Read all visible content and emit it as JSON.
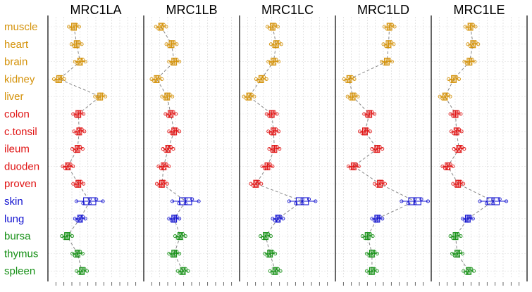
{
  "chart_data": {
    "type": "boxplot-profile",
    "panels": [
      "MRC1LA",
      "MRC1LB",
      "MRC1LC",
      "MRC1LD",
      "MRC1LE"
    ],
    "tissues": [
      "muscle",
      "heart",
      "brain",
      "kidney",
      "liver",
      "colon",
      "c.tonsil",
      "ileum",
      "duoden",
      "proven",
      "skin",
      "lung",
      "bursa",
      "thymus",
      "spleen"
    ],
    "tissue_groups": [
      0,
      0,
      0,
      0,
      0,
      1,
      1,
      1,
      1,
      1,
      2,
      2,
      3,
      3,
      3
    ],
    "group_colors": [
      "#d4920a",
      "#e01414",
      "#1414d0",
      "#169016"
    ],
    "grid": true,
    "connect_medians": true,
    "medians": [
      [
        2.5,
        2.8,
        3.2,
        0.8,
        5.5,
        3.0,
        3.1,
        2.9,
        1.8,
        3.0,
        4.3,
        3.2,
        1.7,
        2.9,
        3.4
      ],
      [
        1.5,
        2.7,
        3.0,
        1.0,
        2.2,
        2.6,
        3.0,
        2.3,
        1.8,
        1.6,
        4.3,
        3.0,
        3.7,
        3.0,
        4.0
      ],
      [
        3.3,
        3.7,
        3.4,
        2.0,
        0.6,
        3.2,
        3.4,
        3.5,
        2.7,
        1.4,
        6.7,
        3.9,
        2.5,
        3.0,
        3.6
      ],
      [
        5.7,
        5.6,
        5.4,
        1.1,
        1.5,
        3.4,
        2.9,
        4.3,
        1.6,
        4.6,
        8.6,
        4.3,
        3.2,
        3.7,
        3.7
      ],
      [
        4.0,
        4.3,
        3.9,
        2.1,
        1.1,
        2.3,
        2.4,
        2.7,
        1.4,
        2.6,
        6.6,
        3.7,
        2.3,
        2.5,
        3.8
      ]
    ],
    "x_ticks": 12
  }
}
